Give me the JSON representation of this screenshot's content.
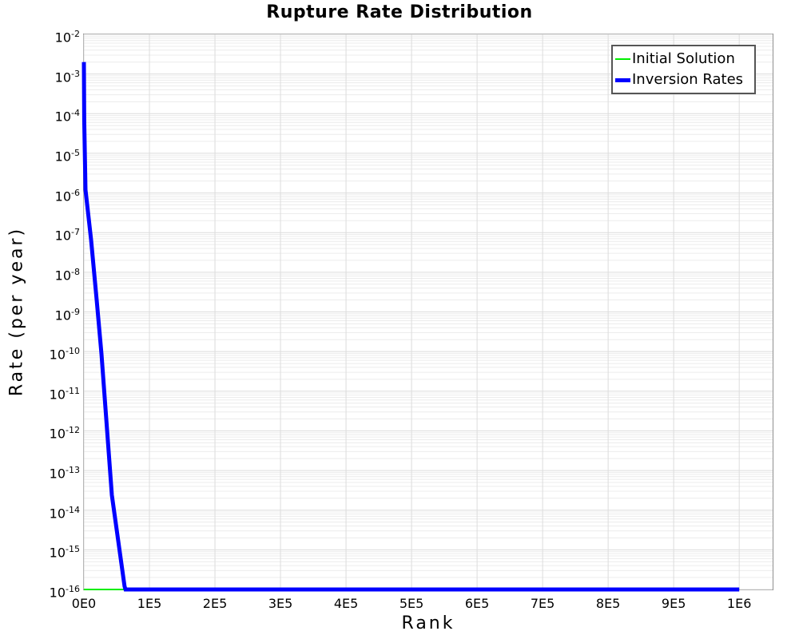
{
  "title": "Rupture Rate Distribution",
  "axes": {
    "xlabel": "Rank",
    "ylabel": "Rate (per year)"
  },
  "legend": {
    "position": "top-right",
    "items": [
      {
        "label": "Initial Solution",
        "color": "#00ee00",
        "thickness": 2
      },
      {
        "label": "Inversion Rates",
        "color": "#0000ff",
        "thickness": 5
      }
    ]
  },
  "chart_data": {
    "type": "line",
    "title": "Rupture Rate Distribution",
    "xlabel": "Rank",
    "ylabel": "Rate (per year)",
    "grid": {
      "enabled": true,
      "major_color": "#dcdcdc",
      "minor_color": "#ececec",
      "background": "#ffffff"
    },
    "x_axis": {
      "scale": "linear",
      "min": 0,
      "max": 1051000,
      "tick_values": [
        0,
        100000,
        200000,
        300000,
        400000,
        500000,
        600000,
        700000,
        800000,
        900000,
        1000000
      ],
      "tick_labels": [
        "0E0",
        "1E5",
        "2E5",
        "3E5",
        "4E5",
        "5E5",
        "6E5",
        "7E5",
        "8E5",
        "9E5",
        "1E6"
      ]
    },
    "y_axis": {
      "scale": "log",
      "min": 1e-16,
      "max": 0.01,
      "tick_label_base": "10",
      "tick_exponents": [
        -2,
        -3,
        -4,
        -5,
        -6,
        -7,
        -8,
        -9,
        -10,
        -11,
        -12,
        -13,
        -14,
        -15,
        -16
      ]
    },
    "series": [
      {
        "name": "Initial Solution",
        "color": "#00ee00",
        "stroke_width": 2,
        "points": [
          [
            0,
            1e-16
          ],
          [
            1000000,
            1e-16
          ]
        ]
      },
      {
        "name": "Inversion Rates",
        "color": "#0000ff",
        "stroke_width": 5,
        "points": [
          [
            0,
            0.002
          ],
          [
            500,
            7e-05
          ],
          [
            2400,
            1.2e-06
          ],
          [
            11000,
            6.6e-08
          ],
          [
            19500,
            2e-09
          ],
          [
            26800,
            8.7e-11
          ],
          [
            42700,
            2.4e-14
          ],
          [
            62000,
            1.2e-16
          ],
          [
            63500,
            1e-16
          ],
          [
            1000000,
            1e-16
          ]
        ]
      }
    ]
  }
}
